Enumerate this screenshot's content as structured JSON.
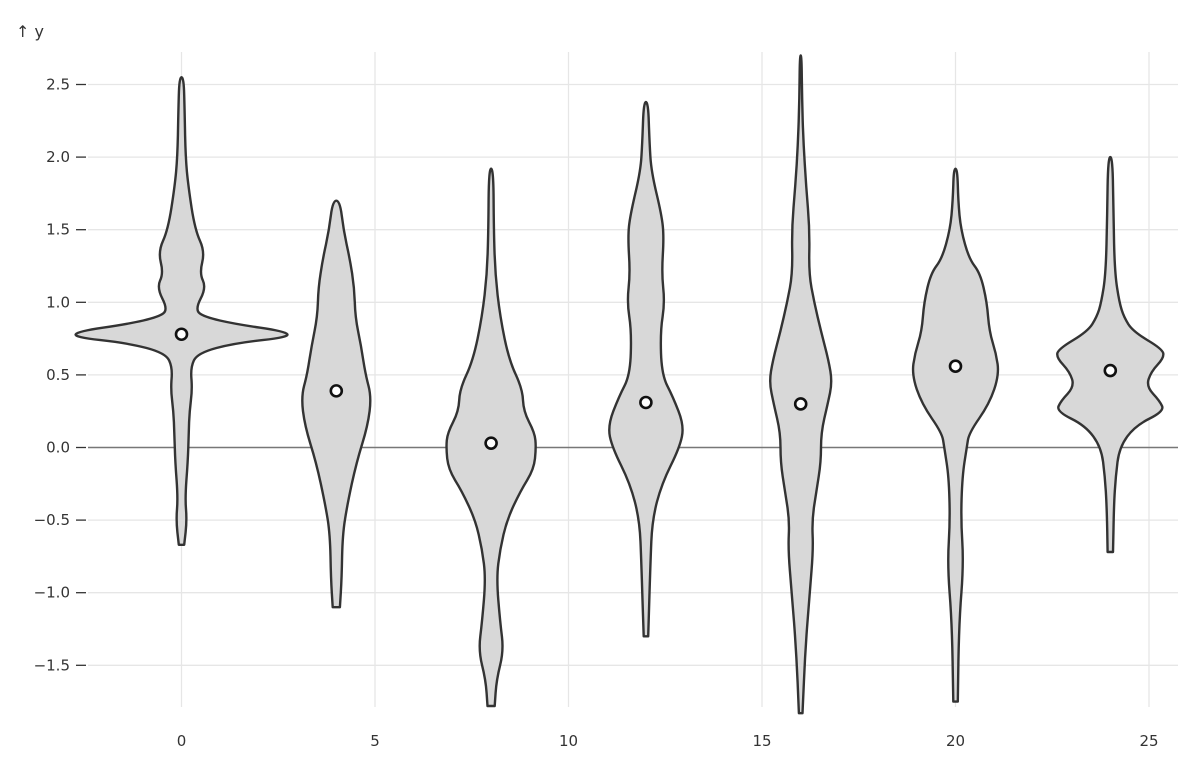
{
  "chart_data": {
    "type": "violin",
    "ylabel": "↑ y",
    "xlim": [
      -2.3,
      25.7
    ],
    "ylim": [
      -1.85,
      2.75
    ],
    "x_ticks": [
      0,
      5,
      10,
      15,
      20,
      25
    ],
    "y_ticks": [
      2.5,
      2.0,
      1.5,
      1.0,
      0.5,
      0.0,
      -0.5,
      -1.0,
      -1.5
    ],
    "y_tick_labels": [
      "2.5",
      "2.0",
      "1.5",
      "1.0",
      "0.5",
      "0.0",
      "−0.5",
      "−1.0",
      "−1.5"
    ],
    "grid": true,
    "zero_line": true,
    "fill_color": "#d8d8d8",
    "stroke_color": "#333333",
    "violins": [
      {
        "x": 0,
        "min": -0.67,
        "max": 2.55,
        "median": 0.78,
        "profile": [
          [
            -0.67,
            0.06
          ],
          [
            -0.5,
            0.12
          ],
          [
            -0.35,
            0.08
          ],
          [
            -0.1,
            0.14
          ],
          [
            0.1,
            0.16
          ],
          [
            0.25,
            0.18
          ],
          [
            0.4,
            0.24
          ],
          [
            0.55,
            0.2
          ],
          [
            0.65,
            0.35
          ],
          [
            0.72,
            1.2
          ],
          [
            0.76,
            2.4
          ],
          [
            0.8,
            2.3
          ],
          [
            0.85,
            1.2
          ],
          [
            0.9,
            0.5
          ],
          [
            0.95,
            0.3
          ],
          [
            1.1,
            0.55
          ],
          [
            1.2,
            0.4
          ],
          [
            1.35,
            0.52
          ],
          [
            1.5,
            0.3
          ],
          [
            1.8,
            0.15
          ],
          [
            2.0,
            0.09
          ],
          [
            2.3,
            0.07
          ],
          [
            2.55,
            0.05
          ]
        ]
      },
      {
        "x": 4,
        "min": -1.1,
        "max": 1.7,
        "median": 0.39,
        "profile": [
          [
            -1.1,
            0.08
          ],
          [
            -0.9,
            0.12
          ],
          [
            -0.6,
            0.14
          ],
          [
            -0.4,
            0.24
          ],
          [
            -0.1,
            0.45
          ],
          [
            0.15,
            0.7
          ],
          [
            0.35,
            0.78
          ],
          [
            0.5,
            0.65
          ],
          [
            0.7,
            0.55
          ],
          [
            0.9,
            0.42
          ],
          [
            1.1,
            0.4
          ],
          [
            1.3,
            0.3
          ],
          [
            1.5,
            0.16
          ],
          [
            1.7,
            0.08
          ]
        ]
      },
      {
        "x": 8,
        "min": -1.78,
        "max": 1.92,
        "median": 0.03,
        "profile": [
          [
            -1.78,
            0.08
          ],
          [
            -1.6,
            0.12
          ],
          [
            -1.4,
            0.28
          ],
          [
            -1.2,
            0.2
          ],
          [
            -0.9,
            0.12
          ],
          [
            -0.7,
            0.2
          ],
          [
            -0.5,
            0.35
          ],
          [
            -0.3,
            0.65
          ],
          [
            -0.15,
            0.95
          ],
          [
            0.0,
            1.0
          ],
          [
            0.1,
            0.97
          ],
          [
            0.25,
            0.72
          ],
          [
            0.4,
            0.7
          ],
          [
            0.6,
            0.4
          ],
          [
            0.9,
            0.2
          ],
          [
            1.2,
            0.09
          ],
          [
            1.5,
            0.06
          ],
          [
            1.92,
            0.05
          ]
        ]
      },
      {
        "x": 12,
        "min": -1.3,
        "max": 2.38,
        "median": 0.31,
        "profile": [
          [
            -1.3,
            0.05
          ],
          [
            -0.8,
            0.1
          ],
          [
            -0.5,
            0.14
          ],
          [
            -0.25,
            0.35
          ],
          [
            0.0,
            0.75
          ],
          [
            0.15,
            0.85
          ],
          [
            0.35,
            0.6
          ],
          [
            0.5,
            0.35
          ],
          [
            0.8,
            0.32
          ],
          [
            1.0,
            0.42
          ],
          [
            1.2,
            0.35
          ],
          [
            1.45,
            0.4
          ],
          [
            1.6,
            0.35
          ],
          [
            1.9,
            0.12
          ],
          [
            2.1,
            0.08
          ],
          [
            2.38,
            0.05
          ]
        ]
      },
      {
        "x": 16,
        "min": -1.83,
        "max": 2.7,
        "median": 0.3,
        "profile": [
          [
            -1.83,
            0.04
          ],
          [
            -1.4,
            0.1
          ],
          [
            -1.0,
            0.2
          ],
          [
            -0.7,
            0.28
          ],
          [
            -0.5,
            0.25
          ],
          [
            -0.3,
            0.35
          ],
          [
            -0.1,
            0.45
          ],
          [
            0.1,
            0.45
          ],
          [
            0.3,
            0.6
          ],
          [
            0.45,
            0.7
          ],
          [
            0.6,
            0.62
          ],
          [
            0.8,
            0.45
          ],
          [
            1.0,
            0.3
          ],
          [
            1.2,
            0.18
          ],
          [
            1.5,
            0.2
          ],
          [
            1.8,
            0.12
          ],
          [
            2.1,
            0.06
          ],
          [
            2.4,
            0.03
          ],
          [
            2.7,
            0.02
          ]
        ]
      },
      {
        "x": 20,
        "min": -1.75,
        "max": 1.92,
        "median": 0.56,
        "profile": [
          [
            -1.75,
            0.05
          ],
          [
            -1.2,
            0.08
          ],
          [
            -0.8,
            0.18
          ],
          [
            -0.5,
            0.12
          ],
          [
            -0.2,
            0.15
          ],
          [
            0.0,
            0.25
          ],
          [
            0.1,
            0.3
          ],
          [
            0.3,
            0.75
          ],
          [
            0.5,
            0.97
          ],
          [
            0.65,
            0.9
          ],
          [
            0.8,
            0.75
          ],
          [
            1.0,
            0.7
          ],
          [
            1.2,
            0.55
          ],
          [
            1.3,
            0.3
          ],
          [
            1.5,
            0.12
          ],
          [
            1.7,
            0.06
          ],
          [
            1.92,
            0.04
          ]
        ]
      },
      {
        "x": 24,
        "min": -0.72,
        "max": 2.0,
        "median": 0.53,
        "profile": [
          [
            -0.72,
            0.06
          ],
          [
            -0.4,
            0.08
          ],
          [
            -0.2,
            0.12
          ],
          [
            0.0,
            0.2
          ],
          [
            0.15,
            0.55
          ],
          [
            0.25,
            1.2
          ],
          [
            0.32,
            1.1
          ],
          [
            0.42,
            0.8
          ],
          [
            0.52,
            0.9
          ],
          [
            0.62,
            1.2
          ],
          [
            0.68,
            1.15
          ],
          [
            0.8,
            0.5
          ],
          [
            0.9,
            0.3
          ],
          [
            1.0,
            0.2
          ],
          [
            1.2,
            0.1
          ],
          [
            1.6,
            0.07
          ],
          [
            2.0,
            0.05
          ]
        ]
      }
    ]
  }
}
